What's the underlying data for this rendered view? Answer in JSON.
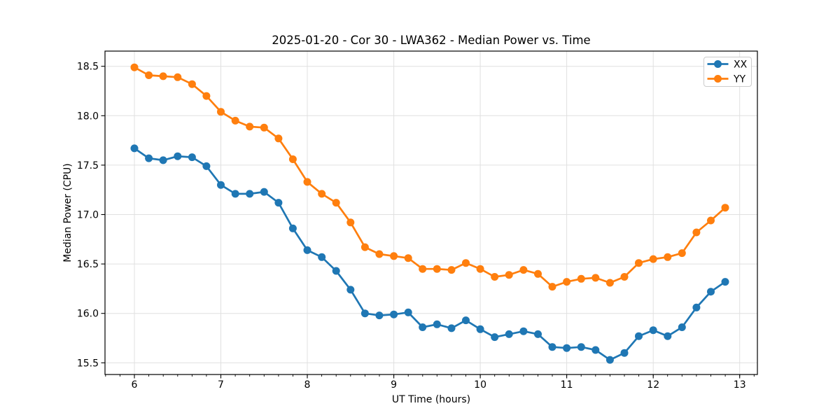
{
  "chart_data": {
    "type": "line",
    "title": "2025-01-20 - Cor 30 - LWA362 - Median Power vs. Time",
    "xlabel": "UT Time (hours)",
    "ylabel": "Median Power (CPU)",
    "xlim": [
      5.66,
      13.205
    ],
    "ylim": [
      15.382,
      18.654
    ],
    "xticks": [
      6,
      7,
      8,
      9,
      10,
      11,
      12,
      13
    ],
    "xtick_labels": [
      "6",
      "7",
      "8",
      "9",
      "10",
      "11",
      "12",
      "13"
    ],
    "yticks": [
      15.5,
      16.0,
      16.5,
      17.0,
      17.5,
      18.0,
      18.5
    ],
    "ytick_labels": [
      "15.5",
      "16.0",
      "16.5",
      "17.0",
      "17.5",
      "18.0",
      "18.5"
    ],
    "x_minor_tick_step": 0.166667,
    "grid": true,
    "grid_color": "#e0e0e0",
    "spine_color": "#000000",
    "legend_position": "upper right",
    "x": [
      6.0,
      6.167,
      6.333,
      6.5,
      6.667,
      6.833,
      7.0,
      7.167,
      7.333,
      7.5,
      7.667,
      7.833,
      8.0,
      8.167,
      8.333,
      8.5,
      8.667,
      8.833,
      9.0,
      9.167,
      9.333,
      9.5,
      9.667,
      9.833,
      10.0,
      10.167,
      10.333,
      10.5,
      10.667,
      10.833,
      11.0,
      11.167,
      11.333,
      11.5,
      11.667,
      11.833,
      12.0,
      12.167,
      12.333,
      12.5,
      12.667,
      12.833
    ],
    "series": [
      {
        "name": "XX",
        "color": "#1f77b4",
        "values": [
          17.67,
          17.57,
          17.55,
          17.59,
          17.58,
          17.49,
          17.3,
          17.21,
          17.21,
          17.23,
          17.12,
          16.86,
          16.64,
          16.57,
          16.43,
          16.24,
          16.0,
          15.98,
          15.99,
          16.01,
          15.86,
          15.89,
          15.85,
          15.93,
          15.84,
          15.76,
          15.79,
          15.82,
          15.79,
          15.66,
          15.65,
          15.66,
          15.63,
          15.53,
          15.6,
          15.77,
          15.83,
          15.77,
          15.86,
          16.06,
          16.22,
          16.32
        ]
      },
      {
        "name": "YY",
        "color": "#ff7f0e",
        "values": [
          18.49,
          18.41,
          18.4,
          18.39,
          18.32,
          18.2,
          18.04,
          17.95,
          17.89,
          17.88,
          17.77,
          17.56,
          17.33,
          17.21,
          17.12,
          16.92,
          16.67,
          16.6,
          16.58,
          16.56,
          16.45,
          16.45,
          16.44,
          16.51,
          16.45,
          16.37,
          16.39,
          16.44,
          16.4,
          16.27,
          16.32,
          16.35,
          16.36,
          16.31,
          16.37,
          16.51,
          16.55,
          16.57,
          16.61,
          16.82,
          16.94,
          17.07
        ]
      }
    ]
  }
}
